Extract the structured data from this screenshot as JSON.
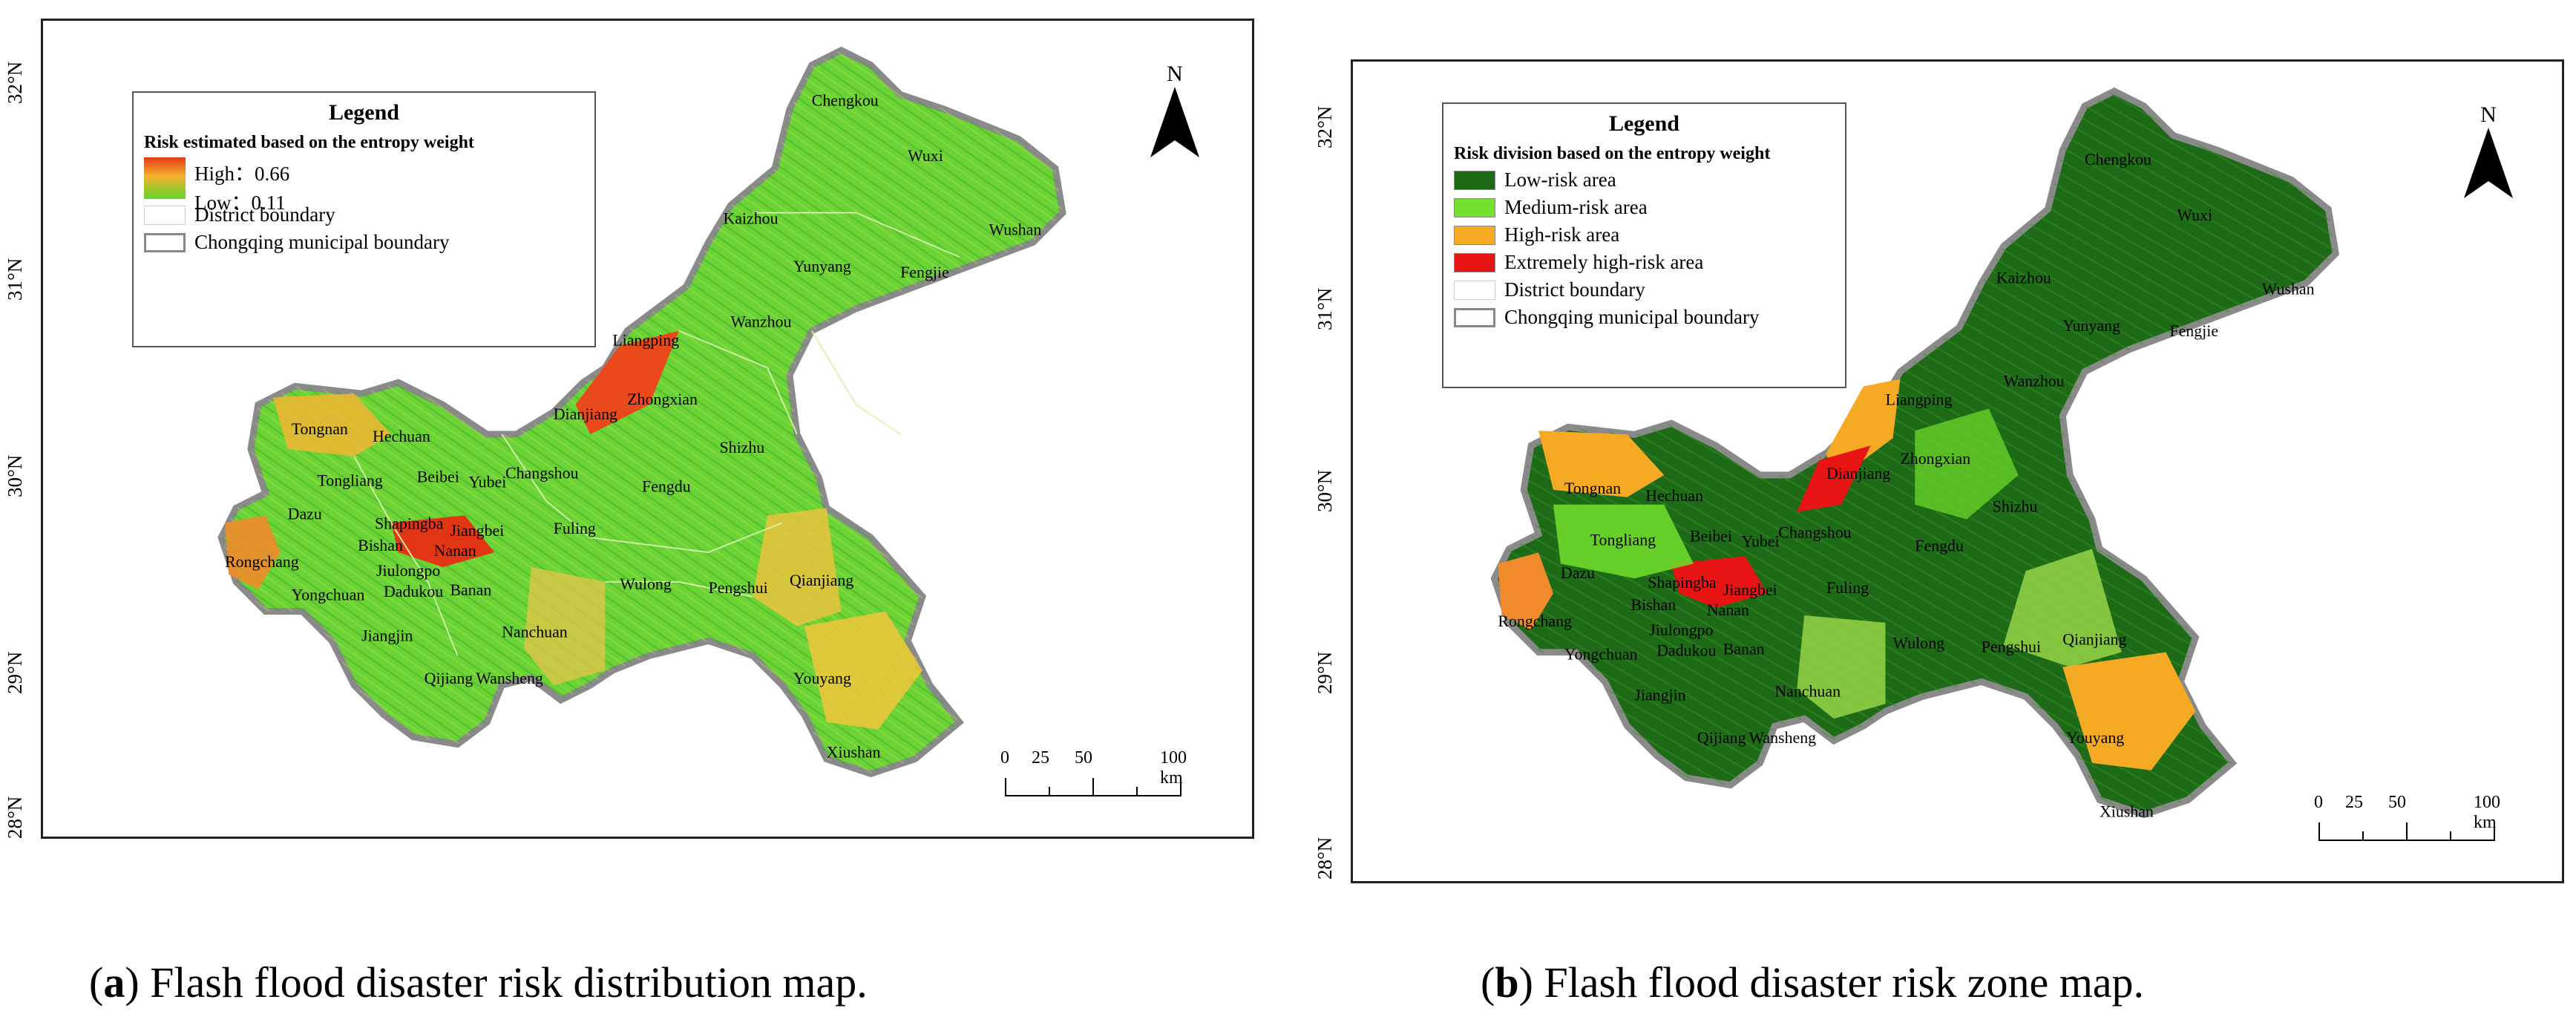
{
  "panels": [
    {
      "id": "a",
      "legend": {
        "title": "Legend",
        "subtitle": "Risk estimated based on the entropy weight",
        "high_label": "High：0.66",
        "low_label": "Low：0.11",
        "district_boundary": "District boundary",
        "municipal_boundary": "Chongqing municipal boundary"
      },
      "caption_letter": "a",
      "caption_text": " Flash flood disaster risk distribution map.",
      "caption_open": "(",
      "caption_close": ")"
    },
    {
      "id": "b",
      "legend": {
        "title": "Legend",
        "subtitle": "Risk division based on the entropy weight",
        "items": [
          {
            "label": "Low-risk area",
            "color": "#1d6b17"
          },
          {
            "label": "Medium-risk area",
            "color": "#72e02c"
          },
          {
            "label": "High-risk area",
            "color": "#f6a922"
          },
          {
            "label": "Extremely high-risk area",
            "color": "#e81313"
          }
        ],
        "district_boundary": "District boundary",
        "municipal_boundary": "Chongqing municipal boundary"
      },
      "caption_letter": "b",
      "caption_text": " Flash flood disaster risk zone map.",
      "caption_open": "(",
      "caption_close": ")"
    }
  ],
  "north_label": "N",
  "scale_labels": [
    "0",
    "25",
    "50",
    "100 km"
  ],
  "latitude_labels": [
    "32°N",
    "31°N",
    "30°N",
    "29°N",
    "28°N"
  ],
  "places": {
    "chengkou": "Chengkou",
    "wuxi": "Wuxi",
    "kaizhou": "Kaizhou",
    "wushan": "Wushan",
    "yunyang": "Yunyang",
    "fengjie": "Fengjie",
    "wanzhou": "Wanzhou",
    "liangping": "Liangping",
    "zhongxian": "Zhongxian",
    "dianjiang": "Dianjiang",
    "shizhu": "Shizhu",
    "tongnan": "Tongnan",
    "hechuan": "Hechuan",
    "changshou": "Changshou",
    "tongliang": "Tongliang",
    "beibei": "Beibei",
    "yubei": "Yubei",
    "fengdu": "Fengdu",
    "dazu": "Dazu",
    "shapingba": "Shapingba",
    "jiangbei": "Jiangbei",
    "bishan": "Bishan",
    "nanan": "Nanan",
    "fuling": "Fuling",
    "rongchang": "Rongchang",
    "jiulongpo": "Jiulongpo",
    "dadukou": "Dadukou",
    "banan": "Banan",
    "wulong": "Wulong",
    "pengshui": "Pengshui",
    "qianjiang": "Qianjiang",
    "yongchuan": "Yongchuan",
    "jiangjin": "Jiangjin",
    "nanchuan": "Nanchuan",
    "qijiang": "Qijiang",
    "wansheng": "Wansheng",
    "youyang": "Youyang",
    "xiushan": "Xiushan"
  }
}
